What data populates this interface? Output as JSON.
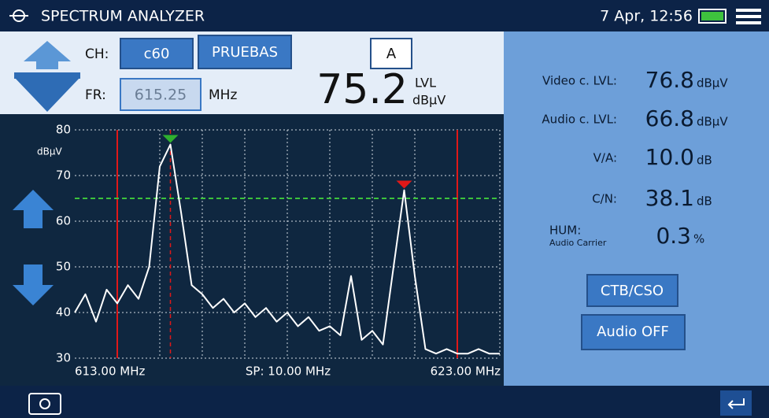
{
  "header": {
    "title": "SPECTRUM ANALYZER",
    "datetime": "7 Apr, 12:56"
  },
  "controls": {
    "ch_label": "CH:",
    "channel": "c60",
    "plan": "PRUEBAS",
    "mode": "A",
    "fr_label": "FR:",
    "frequency": "615.25",
    "frequency_unit": "MHz",
    "level": "75.2",
    "level_label": "LVL",
    "level_unit": "dBµV"
  },
  "measurements": [
    {
      "label": "Video c. LVL:",
      "value": "76.8",
      "unit": "dBµV"
    },
    {
      "label": "Audio c. LVL:",
      "value": "66.8",
      "unit": "dBµV"
    },
    {
      "label": "V/A:",
      "value": "10.0",
      "unit": "dB"
    },
    {
      "label": "C/N:",
      "value": "38.1",
      "unit": "dB"
    },
    {
      "label": "HUM:",
      "sublabel": "Audio Carrier",
      "value": "0.3",
      "unit": "%"
    }
  ],
  "buttons": [
    "CTB/CSO",
    "Audio OFF"
  ],
  "chart_data": {
    "type": "line",
    "y_unit": "dBµV",
    "x_start_label": "613.00 MHz",
    "span_label": "SP: 10.00 MHz",
    "x_end_label": "623.00 MHz",
    "xlim": [
      613,
      623
    ],
    "ylim": [
      30,
      80
    ],
    "yticks": [
      30,
      40,
      50,
      60,
      70,
      80
    ],
    "grid": true,
    "color": "#ffffff",
    "x": [
      613,
      613.25,
      613.5,
      613.75,
      614,
      614.25,
      614.5,
      614.75,
      615,
      615.25,
      615.5,
      615.75,
      616,
      616.25,
      616.5,
      616.75,
      617,
      617.25,
      617.5,
      617.75,
      618,
      618.25,
      618.5,
      618.75,
      619,
      619.25,
      619.5,
      619.75,
      620,
      620.25,
      620.5,
      620.75,
      621,
      621.25,
      621.5,
      621.75,
      622,
      622.25,
      622.5,
      622.75,
      623
    ],
    "values": [
      40,
      44,
      38,
      45,
      42,
      46,
      43,
      50,
      72,
      76.8,
      62,
      46,
      44,
      41,
      43,
      40,
      42,
      39,
      41,
      38,
      40,
      37,
      39,
      36,
      37,
      35,
      48,
      34,
      36,
      33,
      50,
      66.8,
      48,
      32,
      31,
      32,
      31,
      31,
      32,
      31,
      31
    ],
    "reference_level": 65,
    "reference_color": "#3cc23c",
    "limit_lines": [
      614,
      622
    ],
    "limit_color": "#e01818",
    "markers": [
      {
        "x": 615.25,
        "value": 76.8,
        "color": "#2fb02f"
      },
      {
        "x": 620.75,
        "value": 66.8,
        "color": "#e01818"
      }
    ]
  }
}
